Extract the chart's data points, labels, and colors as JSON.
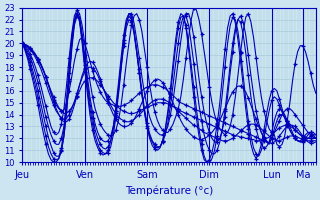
{
  "xlabel": "Température (°c)",
  "ylim": [
    10,
    23
  ],
  "yticks": [
    10,
    11,
    12,
    13,
    14,
    15,
    16,
    17,
    18,
    19,
    20,
    21,
    22,
    23
  ],
  "bg_color": "#cce5f0",
  "grid_color": "#aaccdd",
  "line_color": "#0000bb",
  "day_labels": [
    "Jeu",
    "Ven",
    "Sam",
    "Dim",
    "Lun",
    "Ma"
  ],
  "day_positions": [
    0,
    24,
    48,
    72,
    96,
    108
  ],
  "xlim": [
    0,
    114
  ],
  "series": [
    [
      20.0,
      19.9,
      19.7,
      19.5,
      19.2,
      19.0,
      18.7,
      18.3,
      17.8,
      17.2,
      16.5,
      15.8,
      15.2,
      14.8,
      14.5,
      14.3,
      14.4,
      15.0,
      16.0,
      17.2,
      18.5,
      19.5,
      20.3,
      20.5,
      20.0,
      19.3,
      18.5,
      17.7,
      17.0,
      16.4,
      15.9,
      15.5,
      15.2,
      15.0,
      14.9,
      14.8,
      14.7,
      14.7,
      14.7,
      14.8,
      14.9,
      15.0,
      15.2,
      15.4,
      15.6,
      15.8,
      16.0,
      16.2,
      16.3,
      16.4,
      16.5,
      16.5,
      16.5,
      16.4,
      16.3,
      16.2,
      16.0,
      15.8,
      15.6,
      15.4,
      15.2,
      15.0,
      14.9,
      14.8,
      14.7,
      14.6,
      14.5,
      14.4,
      14.3,
      14.2,
      14.1,
      14.0,
      13.9,
      13.8,
      13.7,
      13.6,
      13.5,
      13.4,
      13.3,
      13.2,
      13.1,
      13.0,
      12.9,
      12.8,
      12.7,
      12.6,
      12.5,
      12.4,
      12.3,
      12.2,
      12.1,
      12.0,
      11.9,
      11.8,
      11.7,
      11.6,
      12.0,
      12.5,
      13.0,
      13.5,
      14.0,
      14.3,
      14.5,
      14.5,
      14.3,
      14.0,
      13.7,
      13.4,
      13.1,
      12.8,
      12.5,
      12.3,
      12.1,
      12.0
    ],
    [
      20.0,
      19.8,
      19.5,
      19.1,
      18.6,
      18.0,
      17.3,
      16.5,
      15.6,
      14.7,
      13.8,
      13.0,
      12.5,
      12.3,
      12.5,
      13.2,
      14.5,
      16.5,
      18.8,
      20.8,
      22.3,
      22.8,
      22.5,
      21.5,
      20.0,
      18.3,
      16.8,
      15.5,
      14.5,
      13.8,
      13.2,
      12.8,
      12.5,
      12.3,
      12.2,
      12.3,
      12.7,
      13.5,
      14.8,
      16.5,
      18.3,
      20.0,
      21.5,
      22.3,
      22.5,
      22.0,
      21.0,
      19.5,
      18.0,
      16.5,
      15.2,
      14.2,
      13.5,
      13.0,
      12.7,
      12.5,
      12.5,
      12.8,
      13.2,
      13.8,
      14.5,
      15.5,
      17.0,
      18.8,
      20.5,
      22.0,
      23.0,
      22.8,
      22.0,
      20.8,
      19.3,
      17.8,
      16.3,
      15.0,
      14.0,
      13.3,
      12.8,
      12.5,
      12.3,
      12.5,
      13.0,
      14.0,
      15.5,
      17.3,
      19.2,
      21.0,
      22.2,
      22.5,
      21.8,
      20.5,
      18.8,
      17.0,
      15.5,
      14.3,
      13.5,
      12.8,
      12.5,
      12.3,
      11.5,
      11.3,
      11.5,
      12.2,
      13.5,
      15.0,
      16.8,
      18.3,
      19.3,
      19.8,
      19.8,
      19.3,
      18.5,
      17.5,
      16.5,
      15.8
    ],
    [
      20.0,
      19.7,
      19.3,
      18.8,
      18.2,
      17.5,
      16.7,
      15.8,
      14.8,
      13.8,
      13.0,
      12.3,
      11.8,
      11.5,
      11.5,
      12.0,
      13.0,
      15.0,
      17.5,
      20.0,
      21.8,
      22.5,
      22.2,
      20.8,
      19.0,
      17.2,
      15.5,
      14.2,
      13.2,
      12.5,
      12.0,
      11.8,
      11.7,
      11.8,
      12.2,
      13.0,
      14.3,
      16.0,
      18.0,
      20.0,
      21.7,
      22.5,
      22.5,
      21.7,
      20.3,
      18.8,
      17.2,
      15.8,
      14.7,
      13.8,
      13.2,
      12.8,
      12.5,
      12.3,
      12.3,
      12.5,
      13.0,
      14.0,
      15.2,
      16.8,
      18.5,
      20.2,
      21.7,
      22.5,
      22.5,
      21.8,
      20.5,
      18.8,
      17.0,
      15.5,
      14.2,
      13.2,
      12.5,
      12.0,
      11.7,
      11.7,
      12.0,
      12.7,
      13.8,
      15.5,
      17.5,
      19.3,
      21.0,
      22.0,
      22.3,
      21.8,
      20.7,
      19.0,
      17.3,
      15.7,
      14.3,
      13.3,
      12.5,
      12.0,
      11.7,
      11.5,
      12.0,
      12.8,
      13.5,
      14.0,
      14.0,
      13.8,
      13.5,
      13.2,
      13.0,
      12.7,
      12.5,
      12.3,
      12.2,
      12.1,
      12.0,
      12.0,
      12.0,
      12.0
    ],
    [
      20.0,
      19.6,
      19.1,
      18.4,
      17.7,
      16.9,
      16.0,
      15.0,
      14.0,
      13.0,
      12.1,
      11.4,
      10.8,
      10.5,
      10.5,
      11.0,
      12.2,
      14.2,
      16.8,
      19.5,
      21.5,
      22.3,
      22.0,
      20.5,
      18.5,
      16.7,
      15.0,
      13.7,
      12.7,
      12.0,
      11.5,
      11.2,
      11.1,
      11.3,
      11.8,
      12.8,
      14.3,
      16.2,
      18.3,
      20.3,
      21.7,
      22.3,
      22.0,
      21.0,
      19.5,
      17.8,
      16.0,
      14.5,
      13.3,
      12.4,
      11.8,
      11.5,
      11.3,
      11.3,
      11.7,
      12.3,
      13.3,
      14.8,
      16.5,
      18.3,
      20.0,
      21.5,
      22.3,
      22.3,
      21.5,
      20.0,
      18.3,
      16.5,
      14.8,
      13.5,
      12.3,
      11.5,
      11.0,
      10.7,
      10.7,
      11.0,
      11.7,
      12.8,
      14.3,
      16.2,
      18.2,
      20.0,
      21.3,
      22.0,
      21.8,
      20.8,
      19.2,
      17.3,
      15.5,
      14.0,
      12.8,
      12.0,
      11.5,
      11.2,
      11.3,
      11.7,
      12.5,
      13.5,
      14.2,
      14.5,
      14.3,
      14.0,
      13.5,
      13.0,
      12.5,
      12.0,
      11.8,
      11.7,
      11.7,
      11.8,
      12.0,
      12.2,
      12.3,
      12.3
    ],
    [
      20.0,
      19.5,
      18.9,
      18.2,
      17.3,
      16.4,
      15.4,
      14.3,
      13.2,
      12.2,
      11.3,
      10.7,
      10.3,
      10.2,
      10.3,
      10.9,
      12.2,
      14.3,
      17.0,
      19.8,
      21.8,
      22.5,
      22.0,
      20.3,
      18.2,
      16.2,
      14.5,
      13.2,
      12.2,
      11.5,
      11.0,
      10.8,
      10.7,
      10.8,
      11.3,
      12.3,
      13.8,
      15.7,
      17.8,
      19.8,
      21.3,
      22.0,
      21.8,
      20.8,
      19.2,
      17.5,
      15.7,
      14.2,
      13.0,
      12.2,
      11.7,
      11.3,
      11.2,
      11.3,
      11.8,
      12.7,
      14.0,
      15.7,
      17.7,
      19.7,
      21.3,
      22.2,
      22.3,
      21.5,
      20.0,
      18.2,
      16.3,
      14.5,
      12.8,
      11.5,
      10.5,
      10.0,
      10.0,
      10.3,
      11.0,
      12.2,
      13.8,
      15.8,
      18.0,
      20.0,
      21.5,
      22.2,
      22.0,
      21.0,
      19.3,
      17.3,
      15.3,
      13.5,
      12.2,
      11.2,
      10.7,
      10.5,
      11.0,
      12.0,
      13.2,
      14.3,
      15.2,
      15.5,
      15.3,
      14.8,
      14.2,
      13.7,
      13.2,
      12.7,
      12.3,
      12.0,
      11.8,
      11.7,
      11.8,
      12.0,
      12.3,
      12.5,
      12.5,
      12.3
    ],
    [
      20.0,
      19.4,
      18.7,
      17.8,
      16.9,
      15.9,
      14.8,
      13.6,
      12.5,
      11.5,
      10.7,
      10.2,
      10.0,
      10.0,
      10.3,
      11.2,
      12.8,
      15.3,
      18.0,
      20.5,
      22.0,
      22.5,
      21.8,
      20.0,
      17.8,
      15.8,
      14.0,
      12.7,
      11.8,
      11.2,
      10.8,
      10.6,
      10.7,
      11.0,
      11.8,
      13.0,
      14.7,
      16.7,
      18.8,
      20.7,
      22.0,
      22.5,
      22.2,
      21.0,
      19.3,
      17.5,
      15.7,
      14.2,
      12.9,
      12.0,
      11.4,
      11.1,
      11.0,
      11.2,
      11.8,
      12.8,
      14.3,
      16.2,
      18.3,
      20.3,
      21.8,
      22.5,
      22.3,
      21.3,
      19.5,
      17.5,
      15.5,
      13.7,
      12.2,
      11.0,
      10.2,
      10.0,
      10.2,
      10.8,
      11.8,
      13.2,
      15.0,
      17.2,
      19.5,
      21.3,
      22.3,
      22.5,
      21.7,
      20.3,
      18.5,
      16.5,
      14.5,
      12.8,
      11.5,
      10.7,
      10.3,
      10.7,
      11.5,
      12.7,
      14.0,
      15.2,
      16.0,
      16.2,
      16.0,
      15.3,
      14.5,
      13.8,
      13.2,
      12.7,
      12.3,
      12.0,
      11.8,
      11.8,
      12.0,
      12.3,
      12.5,
      12.5,
      12.3,
      12.0
    ],
    [
      20.0,
      19.9,
      19.8,
      19.6,
      19.3,
      19.0,
      18.6,
      18.2,
      17.7,
      17.2,
      16.6,
      16.0,
      15.5,
      15.0,
      14.6,
      14.3,
      14.1,
      14.1,
      14.3,
      14.6,
      15.0,
      15.5,
      16.0,
      16.5,
      16.8,
      17.0,
      17.1,
      17.1,
      17.0,
      16.8,
      16.5,
      16.2,
      15.9,
      15.6,
      15.3,
      15.0,
      14.8,
      14.6,
      14.4,
      14.3,
      14.2,
      14.1,
      14.1,
      14.1,
      14.2,
      14.3,
      14.4,
      14.5,
      14.6,
      14.7,
      14.8,
      14.9,
      15.0,
      15.0,
      15.0,
      15.0,
      14.9,
      14.8,
      14.7,
      14.6,
      14.5,
      14.3,
      14.2,
      14.1,
      14.0,
      13.9,
      13.8,
      13.7,
      13.6,
      13.5,
      13.4,
      13.3,
      13.2,
      13.1,
      13.0,
      12.9,
      12.8,
      12.7,
      12.6,
      12.5,
      12.4,
      12.3,
      12.2,
      12.2,
      12.1,
      12.1,
      12.0,
      12.0,
      11.9,
      11.9,
      11.8,
      11.8,
      11.8,
      11.9,
      12.0,
      12.1,
      12.3,
      12.5,
      12.7,
      12.9,
      13.0,
      13.1,
      13.1,
      13.0,
      12.9,
      12.7,
      12.5,
      12.3,
      12.1,
      12.0,
      12.0,
      12.0,
      12.0,
      12.0
    ],
    [
      20.0,
      19.9,
      19.7,
      19.5,
      19.2,
      18.8,
      18.4,
      17.9,
      17.3,
      16.7,
      16.0,
      15.4,
      14.8,
      14.3,
      14.0,
      13.7,
      13.6,
      13.7,
      14.0,
      14.5,
      15.1,
      15.8,
      16.5,
      17.1,
      17.6,
      17.9,
      18.0,
      17.9,
      17.7,
      17.3,
      16.8,
      16.3,
      15.8,
      15.3,
      14.8,
      14.4,
      14.1,
      13.8,
      13.6,
      13.5,
      13.4,
      13.4,
      13.5,
      13.6,
      13.8,
      14.0,
      14.2,
      14.5,
      14.7,
      14.9,
      15.1,
      15.2,
      15.3,
      15.3,
      15.3,
      15.2,
      15.1,
      14.9,
      14.7,
      14.5,
      14.3,
      14.1,
      13.9,
      13.7,
      13.5,
      13.3,
      13.1,
      13.0,
      12.8,
      12.7,
      12.5,
      12.4,
      12.3,
      12.2,
      12.1,
      12.0,
      11.9,
      11.8,
      11.8,
      11.8,
      11.9,
      12.0,
      12.2,
      12.4,
      12.6,
      12.8,
      13.0,
      13.1,
      13.2,
      13.2,
      13.1,
      13.0,
      12.8,
      12.6,
      12.4,
      12.2,
      12.0,
      11.9,
      11.8,
      11.8,
      11.9,
      12.0,
      12.1,
      12.2,
      12.2,
      12.2,
      12.1,
      12.0,
      11.9,
      11.8,
      11.8,
      11.8,
      11.8,
      11.8
    ],
    [
      20.0,
      19.9,
      19.8,
      19.6,
      19.4,
      19.1,
      18.7,
      18.3,
      17.8,
      17.2,
      16.5,
      15.8,
      15.1,
      14.5,
      14.0,
      13.6,
      13.4,
      13.4,
      13.6,
      14.1,
      14.8,
      15.6,
      16.5,
      17.3,
      17.9,
      18.3,
      18.5,
      18.4,
      18.1,
      17.6,
      17.0,
      16.3,
      15.7,
      15.0,
      14.5,
      14.0,
      13.6,
      13.3,
      13.1,
      13.0,
      13.0,
      13.1,
      13.3,
      13.6,
      14.0,
      14.5,
      15.0,
      15.5,
      16.0,
      16.4,
      16.7,
      16.9,
      17.0,
      16.9,
      16.7,
      16.4,
      16.0,
      15.5,
      15.0,
      14.5,
      14.0,
      13.5,
      13.1,
      12.8,
      12.5,
      12.3,
      12.1,
      12.0,
      11.9,
      11.9,
      12.0,
      12.1,
      12.3,
      12.5,
      12.8,
      13.1,
      13.5,
      14.0,
      14.5,
      15.0,
      15.5,
      15.9,
      16.2,
      16.4,
      16.4,
      16.2,
      15.9,
      15.4,
      14.8,
      14.2,
      13.6,
      13.0,
      12.5,
      12.1,
      11.8,
      11.6,
      11.6,
      11.7,
      11.9,
      12.2,
      12.5,
      12.8,
      13.0,
      13.1,
      13.1,
      13.0,
      12.8,
      12.5,
      12.2,
      11.9,
      11.7,
      11.6,
      11.6,
      11.7
    ]
  ]
}
